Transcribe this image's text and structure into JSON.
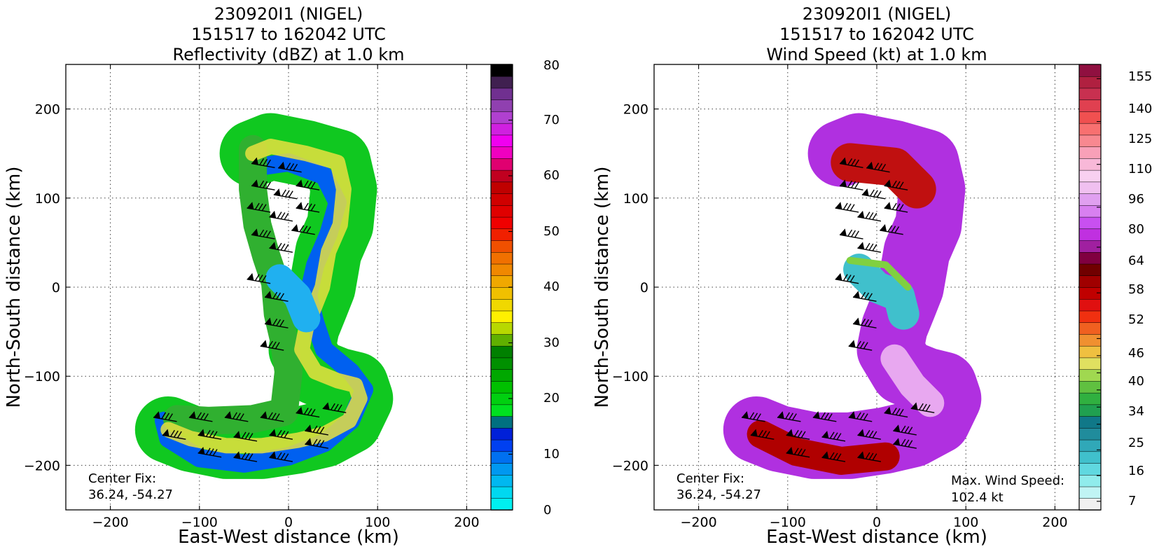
{
  "panels": [
    {
      "title_line1": "230920I1 (NIGEL)",
      "title_line2": "151517 to 162042 UTC",
      "title_line3": "Reflectivity (dBZ) at 1.0 km",
      "xlabel": "East-West distance (km)",
      "ylabel": "North-South distance (km)",
      "center_fix_label": "Center Fix:",
      "center_fix_value": "36.24, -54.27",
      "colorbar_ticks": [
        "0",
        "10",
        "20",
        "30",
        "40",
        "50",
        "60",
        "70",
        "80"
      ]
    },
    {
      "title_line1": "230920I1 (NIGEL)",
      "title_line2": "151517 to 162042 UTC",
      "title_line3": "Wind Speed (kt) at 1.0 km",
      "xlabel": "East-West distance (km)",
      "ylabel": "North-South distance (km)",
      "center_fix_label": "Center Fix:",
      "center_fix_value": "36.24, -54.27",
      "max_wind_label": "Max. Wind Speed:",
      "max_wind_value": "102.4 kt",
      "colorbar_ticks": [
        "7",
        "16",
        "25",
        "34",
        "40",
        "46",
        "52",
        "58",
        "64",
        "80",
        "96",
        "110",
        "125",
        "140",
        "155"
      ]
    }
  ],
  "chart_data": [
    {
      "type": "heatmap",
      "variable": "Reflectivity (dBZ)",
      "x_ticks": [
        -200,
        -100,
        0,
        100,
        200
      ],
      "y_ticks": [
        -200,
        -100,
        0,
        100,
        200
      ],
      "xlim": [
        -250,
        250
      ],
      "ylim": [
        -250,
        250
      ],
      "grid": true,
      "colorbar_range": [
        0,
        80
      ],
      "colorbar_ticks": [
        0,
        10,
        20,
        30,
        40,
        50,
        60,
        70,
        80
      ],
      "colorbar_colors": [
        "#00f0f0",
        "#00d8f0",
        "#00b8f0",
        "#0098f0",
        "#0070f0",
        "#0040f0",
        "#0020d8",
        "#007080",
        "#00e020",
        "#00d010",
        "#00c000",
        "#00a800",
        "#009000",
        "#008000",
        "#60b000",
        "#b8d800",
        "#fff000",
        "#f0d800",
        "#f0c000",
        "#f0a800",
        "#f08800",
        "#f07000",
        "#f05000",
        "#f02000",
        "#f00000",
        "#e00000",
        "#d00000",
        "#c00000",
        "#c00020",
        "#e00070",
        "#f000c0",
        "#f000f0",
        "#d020e0",
        "#b040d0",
        "#9040b0",
        "#703090",
        "#402050",
        "#000000"
      ],
      "center_fix": [
        36.24,
        -54.27
      ]
    },
    {
      "type": "heatmap",
      "variable": "Wind Speed (kt)",
      "x_ticks": [
        -200,
        -100,
        0,
        100,
        200
      ],
      "y_ticks": [
        -200,
        -100,
        0,
        100,
        200
      ],
      "xlim": [
        -250,
        250
      ],
      "ylim": [
        -250,
        250
      ],
      "grid": true,
      "colorbar_range": [
        4,
        160
      ],
      "colorbar_ticks": [
        7,
        16,
        25,
        34,
        40,
        46,
        52,
        58,
        64,
        80,
        96,
        110,
        125,
        140,
        155
      ],
      "colorbar_colors": [
        "#f0f0f0",
        "#c0f4f4",
        "#90ecec",
        "#60d8e0",
        "#40c0cc",
        "#30a8b8",
        "#208c9c",
        "#107888",
        "#20a050",
        "#30b040",
        "#60c040",
        "#a0d850",
        "#e0e060",
        "#f0c040",
        "#f09030",
        "#f06020",
        "#f03010",
        "#e01010",
        "#c00000",
        "#a00000",
        "#700000",
        "#800040",
        "#a020a0",
        "#c030e0",
        "#c850f0",
        "#d880f0",
        "#e0a0f0",
        "#f0c0f0",
        "#f8d0f0",
        "#f8b8d8",
        "#f8a0b8",
        "#f88890",
        "#f87070",
        "#f05050",
        "#e04050",
        "#c83050",
        "#b02040",
        "#901040"
      ],
      "center_fix": [
        36.24,
        -54.27
      ],
      "max_wind_speed_kt": 102.4
    }
  ]
}
